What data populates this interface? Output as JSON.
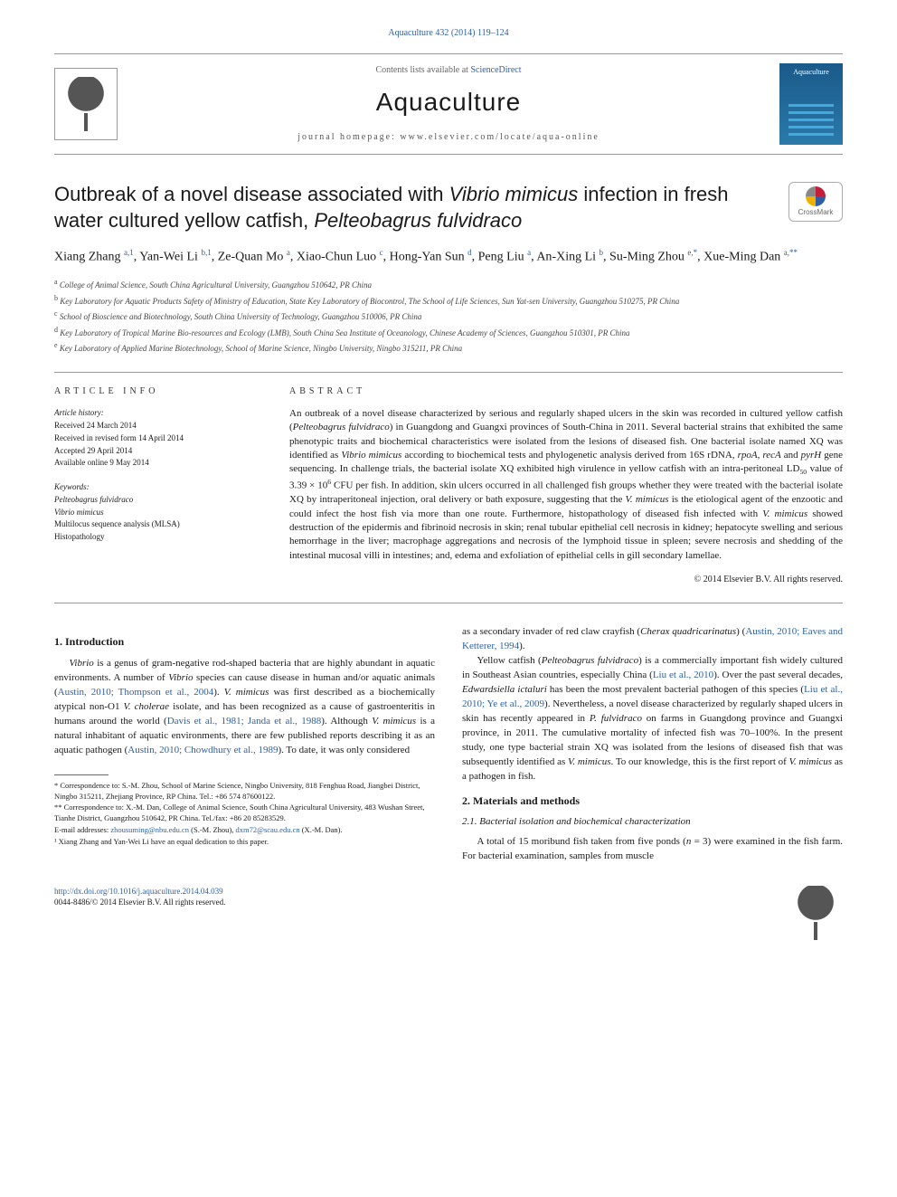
{
  "header": {
    "citation": "Aquaculture 432 (2014) 119–124",
    "sciencedirect_prefix": "Contents lists available at ",
    "sciencedirect_link": "ScienceDirect",
    "journal_name": "Aquaculture",
    "homepage_prefix": "journal homepage: ",
    "homepage": "www.elsevier.com/locate/aqua-online",
    "cover_label": "Aquaculture"
  },
  "article": {
    "title_html": "Outbreak of a novel disease associated with <em>Vibrio mimicus</em> infection in fresh water cultured yellow catfish, <em>Pelteobagrus fulvidraco</em>",
    "crossmark": "CrossMark",
    "authors_html": "Xiang Zhang <sup>a,1</sup>, Yan-Wei Li <sup>b,1</sup>, Ze-Quan Mo <sup>a</sup>, Xiao-Chun Luo <sup>c</sup>, Hong-Yan Sun <sup>d</sup>, Peng Liu <sup>a</sup>, An-Xing Li <sup>b</sup>, Su-Ming Zhou <sup>e,*</sup>, Xue-Ming Dan <sup>a,**</sup>",
    "affiliations": [
      {
        "sup": "a",
        "text": "College of Animal Science, South China Agricultural University, Guangzhou 510642, PR China"
      },
      {
        "sup": "b",
        "text": "Key Laboratory for Aquatic Products Safety of Ministry of Education, State Key Laboratory of Biocontrol, The School of Life Sciences, Sun Yat-sen University, Guangzhou 510275, PR China"
      },
      {
        "sup": "c",
        "text": "School of Bioscience and Biotechnology, South China University of Technology, Guangzhou 510006, PR China"
      },
      {
        "sup": "d",
        "text": "Key Laboratory of Tropical Marine Bio-resources and Ecology (LMB), South China Sea Institute of Oceanology, Chinese Academy of Sciences, Guangzhou 510301, PR China"
      },
      {
        "sup": "e",
        "text": "Key Laboratory of Applied Marine Biotechnology, School of Marine Science, Ningbo University, Ningbo 315211, PR China"
      }
    ]
  },
  "info": {
    "heading": "ARTICLE INFO",
    "history_label": "Article history:",
    "history": [
      "Received 24 March 2014",
      "Received in revised form 14 April 2014",
      "Accepted 29 April 2014",
      "Available online 9 May 2014"
    ],
    "keywords_label": "Keywords:",
    "keywords": [
      "Pelteobagrus fulvidraco",
      "Vibrio mimicus",
      "Multilocus sequence analysis (MLSA)",
      "Histopathology"
    ]
  },
  "abstract": {
    "heading": "ABSTRACT",
    "text_html": "An outbreak of a novel disease characterized by serious and regularly shaped ulcers in the skin was recorded in cultured yellow catfish (<em>Pelteobagrus fulvidraco</em>) in Guangdong and Guangxi provinces of South-China in 2011. Several bacterial strains that exhibited the same phenotypic traits and biochemical characteristics were isolated from the lesions of diseased fish. One bacterial isolate named XQ was identified as <em>Vibrio mimicus</em> according to biochemical tests and phylogenetic analysis derived from 16S rDNA, <em>rpoA</em>, <em>recA</em> and <em>pyrH</em> gene sequencing. In challenge trials, the bacterial isolate XQ exhibited high virulence in yellow catfish with an intra-peritoneal LD<sub>50</sub> value of 3.39 × 10<sup>6</sup> CFU per fish. In addition, skin ulcers occurred in all challenged fish groups whether they were treated with the bacterial isolate XQ by intraperitoneal injection, oral delivery or bath exposure, suggesting that the <em>V. mimicus</em> is the etiological agent of the enzootic and could infect the host fish via more than one route. Furthermore, histopathology of diseased fish infected with <em>V. mimicus</em> showed destruction of the epidermis and fibrinoid necrosis in skin; renal tubular epithelial cell necrosis in kidney; hepatocyte swelling and serious hemorrhage in the liver; macrophage aggregations and necrosis of the lymphoid tissue in spleen; severe necrosis and shedding of the intestinal mucosal villi in intestines; and, edema and exfoliation of epithelial cells in gill secondary lamellae.",
    "copyright": "© 2014 Elsevier B.V. All rights reserved."
  },
  "body": {
    "left": {
      "heading": "1. Introduction",
      "p1_html": "<em>Vibrio</em> is a genus of gram-negative rod-shaped bacteria that are highly abundant in aquatic environments. A number of <em>Vibrio</em> species can cause disease in human and/or aquatic animals (<a href='#'>Austin, 2010; Thompson et al., 2004</a>). <em>V. mimicus</em> was first described as a biochemically atypical non-O1 <em>V. cholerae</em> isolate, and has been recognized as a cause of gastroenteritis in humans around the world (<a href='#'>Davis et al., 1981; Janda et al., 1988</a>). Although <em>V. mimicus</em> is a natural inhabitant of aquatic environments, there are few published reports describing it as an aquatic pathogen (<a href='#'>Austin, 2010; Chowdhury et al., 1989</a>). To date, it was only considered"
    },
    "right": {
      "p1_html": "as a secondary invader of red claw crayfish (<em>Cherax quadricarinatus</em>) (<a href='#'>Austin, 2010; Eaves and Ketterer, 1994</a>).",
      "p2_html": "Yellow catfish (<em>Pelteobagrus fulvidraco</em>) is a commercially important fish widely cultured in Southeast Asian countries, especially China (<a href='#'>Liu et al., 2010</a>). Over the past several decades, <em>Edwardsiella ictaluri</em> has been the most prevalent bacterial pathogen of this species (<a href='#'>Liu et al., 2010; Ye et al., 2009</a>). Nevertheless, a novel disease characterized by regularly shaped ulcers in skin has recently appeared in <em>P. fulvidraco</em> on farms in Guangdong province and Guangxi province, in 2011. The cumulative mortality of infected fish was 70–100%. In the present study, one type bacterial strain XQ was isolated from the lesions of diseased fish that was subsequently identified as <em>V. mimicus</em>. To our knowledge, this is the first report of <em>V. mimicus</em> as a pathogen in fish.",
      "heading2": "2. Materials and methods",
      "heading21": "2.1. Bacterial isolation and biochemical characterization",
      "p3_html": "A total of 15 moribund fish taken from five ponds (<em>n</em> = 3) were examined in the fish farm. For bacterial examination, samples from muscle"
    },
    "footnotes": [
      "* Correspondence to: S.-M. Zhou, School of Marine Science, Ningbo University, 818 Fenghua Road, Jiangbei District, Ningbo 315211, Zhejiang Province, RP China. Tel.: +86 574 87600122.",
      "** Correspondence to: X.-M. Dan, College of Animal Science, South China Agricultural University, 483 Wushan Street, Tianhe District, Guangzhou 510642, PR China. Tel./fax: +86 20 85283529.",
      "E-mail addresses: <a href='#'>zhousuming@nbu.edu.cn</a> (S.-M. Zhou), <a href='#'>dxm72@scau.edu.cn</a> (X.-M. Dan).",
      "¹ Xiang Zhang and Yan-Wei Li have an equal dedication to this paper."
    ]
  },
  "footer": {
    "doi": "http://dx.doi.org/10.1016/j.aquaculture.2014.04.039",
    "issn": "0044-8486/© 2014 Elsevier B.V. All rights reserved."
  },
  "colors": {
    "link": "#2e5fa3",
    "text": "#1a1a1a",
    "border": "#999999",
    "cover_grad_top": "#1a5a8a",
    "cover_grad_bottom": "#2a7aaa"
  }
}
